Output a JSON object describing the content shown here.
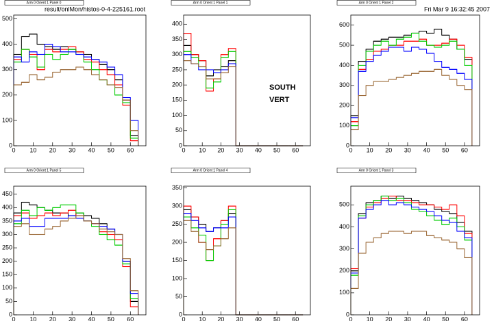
{
  "header": {
    "file": "result/onlMon/histos-0-4-225161.root",
    "date": "Fri Mar  9 16:32:45 2007"
  },
  "label": {
    "line1": "SOUTH",
    "line2": "VERT"
  },
  "chart_data": [
    {
      "type": "histogram",
      "title": "Arm 0 Orient 1 Panel 0",
      "bins": [
        0,
        4,
        8,
        12,
        16,
        20,
        24,
        28,
        32,
        36,
        40,
        44,
        48,
        52,
        56,
        60,
        64
      ],
      "xlim": [
        0,
        68
      ],
      "xticks": [
        0,
        10,
        20,
        30,
        40,
        50,
        60
      ],
      "ylim": [
        0,
        515
      ],
      "yticks": [
        0,
        100,
        200,
        300,
        400,
        500
      ],
      "series": [
        {
          "color": "#000000",
          "values": [
            360,
            430,
            440,
            400,
            390,
            380,
            390,
            380,
            370,
            360,
            340,
            320,
            300,
            260,
            180,
            40
          ]
        },
        {
          "color": "#ff0000",
          "values": [
            340,
            380,
            360,
            300,
            380,
            370,
            380,
            390,
            370,
            340,
            330,
            300,
            280,
            240,
            160,
            20
          ]
        },
        {
          "color": "#00cc00",
          "values": [
            330,
            380,
            350,
            310,
            360,
            340,
            360,
            380,
            360,
            330,
            300,
            260,
            240,
            200,
            170,
            30
          ]
        },
        {
          "color": "#0000ff",
          "values": [
            350,
            330,
            370,
            360,
            400,
            390,
            370,
            370,
            360,
            350,
            340,
            330,
            310,
            280,
            190,
            100
          ]
        },
        {
          "color": "#996633",
          "values": [
            240,
            250,
            280,
            260,
            270,
            290,
            300,
            300,
            310,
            300,
            280,
            260,
            240,
            230,
            180,
            60
          ]
        }
      ]
    },
    {
      "type": "histogram",
      "title": "Arm 0 Orient 1 Panel 1",
      "bins": [
        0,
        4,
        8,
        12,
        16,
        20,
        24,
        28,
        32,
        36,
        40,
        44,
        48,
        52,
        56,
        60,
        64
      ],
      "xlim": [
        0,
        68
      ],
      "xticks": [
        0,
        10,
        20,
        30,
        40,
        50,
        60
      ],
      "ylim": [
        0,
        430
      ],
      "yticks": [
        0,
        50,
        100,
        150,
        200,
        250,
        300,
        350,
        400
      ],
      "series": [
        {
          "color": "#000000",
          "values": [
            330,
            300,
            280,
            230,
            250,
            260,
            280,
            0,
            0,
            0,
            0,
            0,
            0,
            0,
            0,
            0
          ]
        },
        {
          "color": "#ff0000",
          "values": [
            370,
            300,
            280,
            180,
            220,
            300,
            320,
            0,
            0,
            0,
            0,
            0,
            0,
            0,
            0,
            0
          ]
        },
        {
          "color": "#00cc00",
          "values": [
            310,
            290,
            260,
            190,
            210,
            290,
            310,
            0,
            0,
            0,
            0,
            0,
            0,
            0,
            0,
            0
          ]
        },
        {
          "color": "#0000ff",
          "values": [
            300,
            270,
            250,
            250,
            240,
            250,
            270,
            0,
            0,
            0,
            0,
            0,
            0,
            0,
            0,
            0
          ]
        },
        {
          "color": "#996633",
          "values": [
            280,
            270,
            260,
            220,
            220,
            240,
            260,
            0,
            0,
            0,
            0,
            0,
            0,
            0,
            0,
            0
          ]
        }
      ]
    },
    {
      "type": "histogram",
      "title": "Arm 0 Orient 1 Panel 2",
      "bins": [
        0,
        4,
        8,
        12,
        16,
        20,
        24,
        28,
        32,
        36,
        40,
        44,
        48,
        52,
        56,
        60,
        64
      ],
      "xlim": [
        0,
        68
      ],
      "xticks": [
        0,
        10,
        20,
        30,
        40,
        50,
        60
      ],
      "ylim": [
        0,
        650
      ],
      "yticks": [
        0,
        100,
        200,
        300,
        400,
        500,
        600
      ],
      "series": [
        {
          "color": "#000000",
          "values": [
            150,
            420,
            480,
            520,
            530,
            540,
            540,
            550,
            560,
            570,
            560,
            580,
            550,
            530,
            480,
            430
          ]
        },
        {
          "color": "#ff0000",
          "values": [
            120,
            380,
            430,
            470,
            480,
            500,
            500,
            520,
            520,
            530,
            500,
            500,
            510,
            530,
            500,
            440
          ]
        },
        {
          "color": "#00cc00",
          "values": [
            100,
            400,
            470,
            500,
            520,
            500,
            530,
            540,
            560,
            520,
            500,
            490,
            500,
            520,
            480,
            400
          ]
        },
        {
          "color": "#0000ff",
          "values": [
            140,
            370,
            420,
            450,
            470,
            490,
            490,
            470,
            490,
            480,
            460,
            420,
            390,
            380,
            360,
            330
          ]
        },
        {
          "color": "#996633",
          "values": [
            80,
            250,
            300,
            320,
            320,
            330,
            340,
            350,
            360,
            370,
            370,
            380,
            350,
            330,
            300,
            280
          ]
        }
      ]
    },
    {
      "type": "histogram",
      "title": "Arm 0 Orient 1 Panel 5",
      "bins": [
        0,
        4,
        8,
        12,
        16,
        20,
        24,
        28,
        32,
        36,
        40,
        44,
        48,
        52,
        56,
        60,
        64
      ],
      "xlim": [
        0,
        68
      ],
      "xticks": [
        0,
        10,
        20,
        30,
        40,
        50,
        60
      ],
      "ylim": [
        0,
        480
      ],
      "yticks": [
        0,
        50,
        100,
        150,
        200,
        250,
        300,
        350,
        400,
        450
      ],
      "series": [
        {
          "color": "#000000",
          "values": [
            380,
            420,
            410,
            400,
            390,
            380,
            380,
            370,
            380,
            370,
            360,
            340,
            320,
            300,
            200,
            50
          ]
        },
        {
          "color": "#ff0000",
          "values": [
            370,
            380,
            360,
            370,
            380,
            370,
            380,
            390,
            370,
            350,
            340,
            310,
            300,
            280,
            180,
            30
          ]
        },
        {
          "color": "#00cc00",
          "values": [
            340,
            390,
            370,
            400,
            390,
            400,
            410,
            410,
            380,
            350,
            330,
            300,
            280,
            260,
            190,
            60
          ]
        },
        {
          "color": "#0000ff",
          "values": [
            350,
            360,
            330,
            330,
            360,
            360,
            360,
            370,
            360,
            350,
            340,
            330,
            320,
            300,
            200,
            80
          ]
        },
        {
          "color": "#996633",
          "values": [
            330,
            340,
            300,
            300,
            320,
            330,
            350,
            360,
            370,
            350,
            340,
            320,
            310,
            300,
            210,
            90
          ]
        }
      ]
    },
    {
      "type": "histogram",
      "title": "Arm 0 Orient 1 Panel 4",
      "bins": [
        0,
        4,
        8,
        12,
        16,
        20,
        24,
        28,
        32,
        36,
        40,
        44,
        48,
        52,
        56,
        60,
        64
      ],
      "xlim": [
        0,
        68
      ],
      "xticks": [
        0,
        10,
        20,
        30,
        40,
        50,
        60
      ],
      "ylim": [
        0,
        355
      ],
      "yticks": [
        0,
        50,
        100,
        150,
        200,
        250,
        300,
        350
      ],
      "series": [
        {
          "color": "#000000",
          "values": [
            290,
            270,
            250,
            230,
            240,
            260,
            280,
            0,
            0,
            0,
            0,
            0,
            0,
            0,
            0,
            0
          ]
        },
        {
          "color": "#ff0000",
          "values": [
            300,
            270,
            200,
            150,
            210,
            260,
            300,
            0,
            0,
            0,
            0,
            0,
            0,
            0,
            0,
            0
          ]
        },
        {
          "color": "#00cc00",
          "values": [
            270,
            240,
            220,
            150,
            190,
            250,
            290,
            0,
            0,
            0,
            0,
            0,
            0,
            0,
            0,
            0
          ]
        },
        {
          "color": "#0000ff",
          "values": [
            280,
            260,
            240,
            230,
            240,
            240,
            270,
            0,
            0,
            0,
            0,
            0,
            0,
            0,
            0,
            0
          ]
        },
        {
          "color": "#996633",
          "values": [
            260,
            230,
            200,
            180,
            190,
            210,
            240,
            0,
            0,
            0,
            0,
            0,
            0,
            0,
            0,
            0
          ]
        }
      ]
    },
    {
      "type": "histogram",
      "title": "Arm 0 Orient 1 Panel 3",
      "bins": [
        0,
        4,
        8,
        12,
        16,
        20,
        24,
        28,
        32,
        36,
        40,
        44,
        48,
        52,
        56,
        60,
        64
      ],
      "xlim": [
        0,
        68
      ],
      "xticks": [
        0,
        10,
        20,
        30,
        40,
        50,
        60
      ],
      "ylim": [
        0,
        585
      ],
      "yticks": [
        0,
        100,
        200,
        300,
        400,
        500
      ],
      "series": [
        {
          "color": "#000000",
          "values": [
            200,
            460,
            510,
            520,
            540,
            530,
            540,
            530,
            520,
            510,
            500,
            480,
            470,
            460,
            420,
            380
          ]
        },
        {
          "color": "#ff0000",
          "values": [
            210,
            440,
            490,
            510,
            530,
            540,
            520,
            520,
            510,
            500,
            500,
            490,
            480,
            500,
            450,
            370
          ]
        },
        {
          "color": "#00cc00",
          "values": [
            180,
            450,
            500,
            520,
            540,
            520,
            530,
            510,
            480,
            470,
            450,
            430,
            410,
            440,
            400,
            340
          ]
        },
        {
          "color": "#0000ff",
          "values": [
            190,
            440,
            480,
            500,
            520,
            500,
            510,
            500,
            490,
            480,
            470,
            450,
            430,
            420,
            380,
            350
          ]
        },
        {
          "color": "#996633",
          "values": [
            120,
            280,
            330,
            350,
            370,
            380,
            380,
            370,
            380,
            380,
            360,
            350,
            340,
            330,
            300,
            260
          ]
        }
      ]
    }
  ]
}
